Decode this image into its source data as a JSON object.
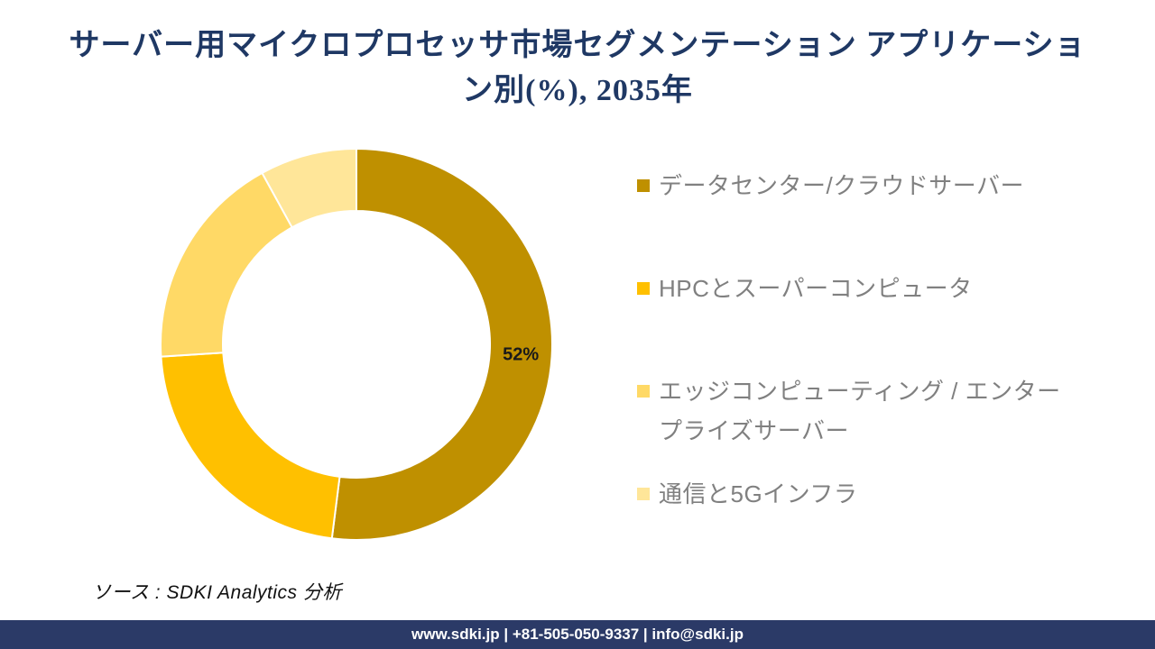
{
  "title": {
    "line1": "サーバー用マイクロプロセッサ市場セグメンテーション アプリケーショ",
    "line2": "ン別(%), 2035年"
  },
  "chart_data": {
    "type": "pie",
    "subtype": "donut",
    "title": "サーバー用マイクロプロセッサ市場セグメンテーション アプリケーション別(%), 2035年",
    "unit": "%",
    "categories": [
      "データセンター/クラウドサーバー",
      "HPCとスーパーコンピュータ",
      "エッジコンピューティング / エンタープライズサーバー",
      "通信と5Gインフラ"
    ],
    "values": [
      52,
      22,
      18,
      8
    ],
    "colors": [
      "#BF9000",
      "#FFC000",
      "#FFD966",
      "#FFE699"
    ],
    "data_labels": [
      "52%",
      "",
      "",
      ""
    ],
    "start_angle_deg": 0,
    "direction": "clockwise",
    "inner_radius_ratio": 0.68,
    "slice_border_color": "#FFFFFF",
    "legend_position": "right",
    "grid": false
  },
  "palette": {
    "title_color": "#1F3864",
    "legend_text_color": "#808080",
    "data_label_color": "#1A1A1A",
    "footer_bg": "#2B3A67",
    "footer_text_color": "#FFFFFF"
  },
  "source_note": "ソース : SDKI Analytics 分析",
  "footer": {
    "text": "www.sdki.jp | +81-505-050-9337 | info@sdki.jp"
  }
}
